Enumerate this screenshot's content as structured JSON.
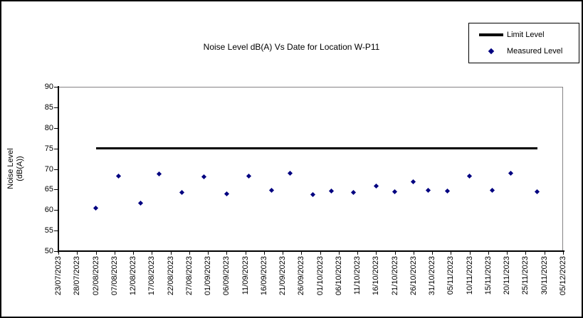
{
  "colors": {
    "measured": "#000080",
    "limit": "#000000",
    "axis": "#000000",
    "plot_border": "#848284",
    "background": "#ffffff"
  },
  "legend": {
    "entries": [
      {
        "label": "Limit Level",
        "swatch": "thick-black-line"
      },
      {
        "label": "Measured Level",
        "swatch": "navy-diamond"
      }
    ]
  },
  "chart_data": {
    "type": "scatter",
    "title": "Noise Level dB(A) Vs Date for Location W-P11",
    "xlabel": "",
    "ylabel": "Noise Level (dB(A))",
    "ylabel_lines": [
      "Noise Level",
      "(dB(A))"
    ],
    "ylim": [
      50,
      90
    ],
    "ytick_step": 5,
    "ytick_labels": [
      "90",
      "85",
      "80",
      "75",
      "70",
      "65",
      "60",
      "55",
      "50"
    ],
    "gridlines": false,
    "legend_position": "top-right",
    "x_axis_start": "23/07/2023",
    "x_axis_end": "05/12/2023",
    "x_axis_total_days": 135,
    "x_tick_labels": [
      "23/07/2023",
      "28/07/2023",
      "02/08/2023",
      "07/08/2023",
      "12/08/2023",
      "17/08/2023",
      "22/08/2023",
      "27/08/2023",
      "01/09/2023",
      "06/09/2023",
      "11/09/2023",
      "16/09/2023",
      "21/09/2023",
      "26/09/2023",
      "01/10/2023",
      "06/10/2023",
      "11/10/2023",
      "16/10/2023",
      "21/10/2023",
      "26/10/2023",
      "31/10/2023",
      "05/11/2023",
      "10/11/2023",
      "15/11/2023",
      "20/11/2023",
      "25/11/2023",
      "30/11/2023",
      "05/12/2023"
    ],
    "series": [
      {
        "name": "Limit Level",
        "type": "line",
        "color": "#000000",
        "value": 75,
        "start_date": "02/08/2023",
        "end_date": "28/11/2023"
      },
      {
        "name": "Measured Level",
        "type": "scatter",
        "marker": "diamond",
        "color": "#000080",
        "points": [
          {
            "date": "02/08/2023",
            "value": 60.4
          },
          {
            "date": "08/08/2023",
            "value": 68.2
          },
          {
            "date": "14/08/2023",
            "value": 61.7
          },
          {
            "date": "19/08/2023",
            "value": 68.8
          },
          {
            "date": "25/08/2023",
            "value": 64.2
          },
          {
            "date": "31/08/2023",
            "value": 68.1
          },
          {
            "date": "06/09/2023",
            "value": 63.9
          },
          {
            "date": "12/09/2023",
            "value": 68.2
          },
          {
            "date": "18/09/2023",
            "value": 64.8
          },
          {
            "date": "23/09/2023",
            "value": 68.9
          },
          {
            "date": "29/09/2023",
            "value": 63.8
          },
          {
            "date": "04/10/2023",
            "value": 64.6
          },
          {
            "date": "10/10/2023",
            "value": 64.2
          },
          {
            "date": "16/10/2023",
            "value": 65.8
          },
          {
            "date": "21/10/2023",
            "value": 64.4
          },
          {
            "date": "26/10/2023",
            "value": 66.9
          },
          {
            "date": "30/10/2023",
            "value": 64.8
          },
          {
            "date": "04/11/2023",
            "value": 64.6
          },
          {
            "date": "10/11/2023",
            "value": 68.2
          },
          {
            "date": "16/11/2023",
            "value": 64.8
          },
          {
            "date": "21/11/2023",
            "value": 68.9
          },
          {
            "date": "28/11/2023",
            "value": 64.5
          }
        ]
      }
    ]
  }
}
